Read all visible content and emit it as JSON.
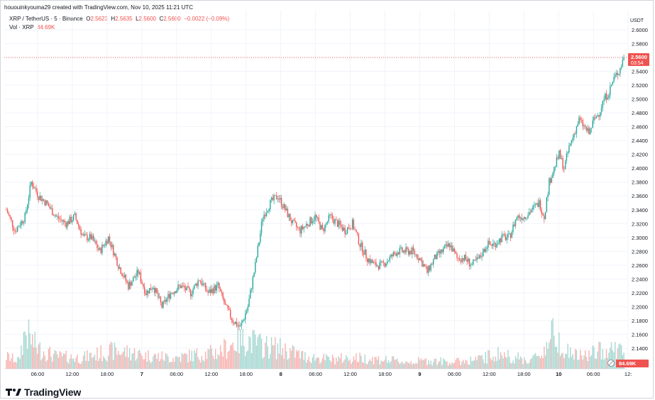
{
  "header": {
    "attribution": "hououinkyouma29 created with TradingView.com, Nov 10, 2025 11:21 UTC"
  },
  "legend": {
    "symbol": "XRP / TetherUS · 5 · Binance",
    "o_label": "O",
    "o_value": "2.5623",
    "h_label": "H",
    "h_value": "2.5635",
    "l_label": "L",
    "l_value": "2.5600",
    "c_label": "C",
    "c_value": "2.5600",
    "change": "−0.0022 (−0.09%)",
    "vol_label": "Vol · XRP",
    "vol_value": "84.69K"
  },
  "brand": {
    "name": "TradingView"
  },
  "colors": {
    "up": "#26a69a",
    "down": "#ef5350",
    "vol_up": "#a8d8d2",
    "vol_down": "#f7b4b2",
    "grid": "#f0f3fa",
    "axis_text": "#131722"
  },
  "chart_data": {
    "type": "candlestick",
    "y_unit": "USDT",
    "ylim": [
      2.12,
      2.61
    ],
    "y_ticks": [
      "2.6000",
      "2.5800",
      "2.5600",
      "2.5400",
      "2.5200",
      "2.5000",
      "2.4800",
      "2.4600",
      "2.4400",
      "2.4200",
      "2.4000",
      "2.3800",
      "2.3600",
      "2.3400",
      "2.3200",
      "2.3000",
      "2.2800",
      "2.2600",
      "2.2400",
      "2.2200",
      "2.2000",
      "2.1800",
      "2.1600",
      "2.1400"
    ],
    "x_ticks": [
      "06:00",
      "12:00",
      "18:00",
      "7",
      "06:00",
      "12:00",
      "18:00",
      "8",
      "06:00",
      "12:00",
      "18:00",
      "9",
      "06:00",
      "12:00",
      "18:00",
      "10",
      "06:00",
      "12:"
    ],
    "last_price": "2.5600",
    "countdown": "03:54",
    "last_volume": "84.69K",
    "grid": true,
    "price_path": [
      [
        0,
        2.34
      ],
      [
        7,
        2.31
      ],
      [
        15,
        2.33
      ],
      [
        20,
        2.38
      ],
      [
        26,
        2.36
      ],
      [
        32,
        2.35
      ],
      [
        40,
        2.33
      ],
      [
        48,
        2.32
      ],
      [
        55,
        2.33
      ],
      [
        62,
        2.3
      ],
      [
        68,
        2.3
      ],
      [
        75,
        2.28
      ],
      [
        82,
        2.3
      ],
      [
        90,
        2.26
      ],
      [
        98,
        2.23
      ],
      [
        106,
        2.25
      ],
      [
        112,
        2.22
      ],
      [
        118,
        2.23
      ],
      [
        125,
        2.2
      ],
      [
        132,
        2.22
      ],
      [
        140,
        2.23
      ],
      [
        148,
        2.22
      ],
      [
        155,
        2.24
      ],
      [
        162,
        2.22
      ],
      [
        170,
        2.23
      ],
      [
        176,
        2.2
      ],
      [
        182,
        2.18
      ],
      [
        188,
        2.17
      ],
      [
        194,
        2.2
      ],
      [
        200,
        2.26
      ],
      [
        206,
        2.33
      ],
      [
        212,
        2.35
      ],
      [
        218,
        2.36
      ],
      [
        224,
        2.34
      ],
      [
        230,
        2.32
      ],
      [
        236,
        2.31
      ],
      [
        242,
        2.32
      ],
      [
        248,
        2.33
      ],
      [
        254,
        2.31
      ],
      [
        260,
        2.33
      ],
      [
        266,
        2.32
      ],
      [
        272,
        2.31
      ],
      [
        278,
        2.32
      ],
      [
        284,
        2.29
      ],
      [
        290,
        2.27
      ],
      [
        296,
        2.26
      ],
      [
        302,
        2.26
      ],
      [
        308,
        2.27
      ],
      [
        314,
        2.28
      ],
      [
        320,
        2.28
      ],
      [
        326,
        2.28
      ],
      [
        332,
        2.27
      ],
      [
        338,
        2.25
      ],
      [
        344,
        2.27
      ],
      [
        350,
        2.28
      ],
      [
        356,
        2.29
      ],
      [
        362,
        2.27
      ],
      [
        368,
        2.27
      ],
      [
        374,
        2.26
      ],
      [
        380,
        2.27
      ],
      [
        386,
        2.29
      ],
      [
        392,
        2.29
      ],
      [
        398,
        2.3
      ],
      [
        404,
        2.3
      ],
      [
        410,
        2.33
      ],
      [
        416,
        2.33
      ],
      [
        422,
        2.34
      ],
      [
        428,
        2.35
      ],
      [
        432,
        2.33
      ],
      [
        436,
        2.38
      ],
      [
        440,
        2.4
      ],
      [
        444,
        2.42
      ],
      [
        448,
        2.4
      ],
      [
        452,
        2.43
      ],
      [
        456,
        2.45
      ],
      [
        460,
        2.47
      ],
      [
        464,
        2.46
      ],
      [
        468,
        2.45
      ],
      [
        472,
        2.47
      ],
      [
        476,
        2.48
      ],
      [
        480,
        2.5
      ],
      [
        484,
        2.51
      ],
      [
        488,
        2.53
      ],
      [
        492,
        2.54
      ],
      [
        496,
        2.56
      ]
    ],
    "volume_path": [
      [
        0,
        0.18
      ],
      [
        10,
        0.12
      ],
      [
        15,
        0.55
      ],
      [
        25,
        0.3
      ],
      [
        40,
        0.18
      ],
      [
        60,
        0.16
      ],
      [
        75,
        0.22
      ],
      [
        85,
        0.26
      ],
      [
        100,
        0.24
      ],
      [
        110,
        0.2
      ],
      [
        120,
        0.18
      ],
      [
        135,
        0.16
      ],
      [
        150,
        0.2
      ],
      [
        170,
        0.24
      ],
      [
        185,
        0.4
      ],
      [
        195,
        0.42
      ],
      [
        205,
        0.34
      ],
      [
        220,
        0.3
      ],
      [
        240,
        0.18
      ],
      [
        260,
        0.14
      ],
      [
        280,
        0.16
      ],
      [
        300,
        0.14
      ],
      [
        320,
        0.1
      ],
      [
        340,
        0.12
      ],
      [
        360,
        0.1
      ],
      [
        380,
        0.14
      ],
      [
        395,
        0.22
      ],
      [
        405,
        0.18
      ],
      [
        420,
        0.12
      ],
      [
        430,
        0.22
      ],
      [
        440,
        0.55
      ],
      [
        450,
        0.26
      ],
      [
        460,
        0.18
      ],
      [
        470,
        0.22
      ],
      [
        480,
        0.28
      ],
      [
        490,
        0.3
      ],
      [
        496,
        0.24
      ]
    ]
  }
}
